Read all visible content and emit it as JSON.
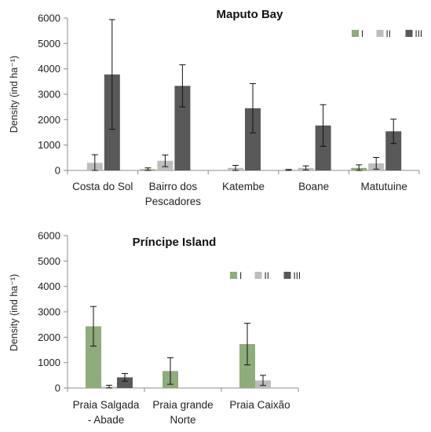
{
  "chart_data": [
    {
      "type": "bar",
      "title": "Maputo Bay",
      "ylabel": "Density (ind ha⁻¹)",
      "ylim": [
        0,
        6000
      ],
      "yticks": [
        "0",
        "1000",
        "2000",
        "3000",
        "4000",
        "5000",
        "6000"
      ],
      "categories": [
        [
          "Costa do Sol"
        ],
        [
          "Bairro dos",
          "Pescadores"
        ],
        [
          "Katembe"
        ],
        [
          "Boane"
        ],
        [
          "Matutuine"
        ]
      ],
      "series": [
        {
          "name": "I",
          "color": "#8fac7c",
          "values": [
            0,
            50,
            0,
            20,
            100
          ],
          "errors": [
            0,
            50,
            0,
            20,
            120
          ]
        },
        {
          "name": "II",
          "color": "#bdbdbd",
          "values": [
            300,
            380,
            100,
            100,
            280
          ],
          "errors": [
            320,
            230,
            100,
            80,
            230
          ]
        },
        {
          "name": "III",
          "color": "#595959",
          "values": [
            3780,
            3330,
            2450,
            1770,
            1540
          ],
          "errors": [
            2160,
            830,
            970,
            820,
            480
          ]
        }
      ],
      "legend": "top-right"
    },
    {
      "type": "bar",
      "title": "Príncipe Island",
      "ylabel": "Density (ind ha⁻¹)",
      "ylim": [
        0,
        6000
      ],
      "yticks": [
        "0",
        "1000",
        "2000",
        "3000",
        "4000",
        "5000",
        "6000"
      ],
      "categories": [
        [
          "Praia Salgada",
          "- Abade"
        ],
        [
          "Praia grande",
          "Norte"
        ],
        [
          "Praia Caixão"
        ]
      ],
      "series": [
        {
          "name": "I",
          "color": "#8fac7c",
          "values": [
            2430,
            670,
            1730
          ],
          "errors": [
            780,
            520,
            820
          ]
        },
        {
          "name": "II",
          "color": "#bdbdbd",
          "values": [
            50,
            0,
            300
          ],
          "errors": [
            60,
            0,
            200
          ]
        },
        {
          "name": "III",
          "color": "#595959",
          "values": [
            420,
            0,
            0
          ],
          "errors": [
            150,
            0,
            0
          ]
        }
      ],
      "legend": "top-right"
    }
  ]
}
